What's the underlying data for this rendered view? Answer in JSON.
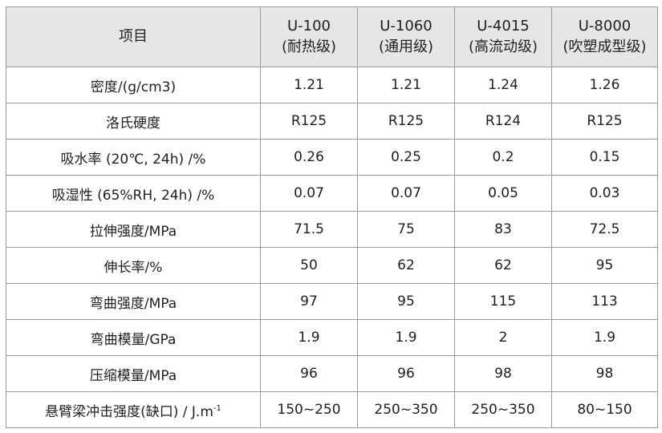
{
  "table": {
    "header": {
      "item_label": "项目",
      "models": [
        {
          "code": "U-100",
          "grade": "(耐热级)"
        },
        {
          "code": "U-1060",
          "grade": "(通用级)"
        },
        {
          "code": "U-4015",
          "grade": "(高流动级)"
        },
        {
          "code": "U-8000",
          "grade": "(吹塑成型级)"
        }
      ]
    },
    "rows": [
      {
        "label": "密度/(g/cm3)",
        "values": [
          "1.21",
          "1.21",
          "1.24",
          "1.26"
        ]
      },
      {
        "label": "洛氏硬度",
        "values": [
          "R125",
          "R125",
          "R124",
          "R125"
        ]
      },
      {
        "label": "吸水率 (20℃, 24h) /%",
        "values": [
          "0.26",
          "0.25",
          "0.2",
          "0.15"
        ]
      },
      {
        "label": "吸湿性 (65%RH, 24h) /%",
        "values": [
          "0.07",
          "0.07",
          "0.05",
          "0.03"
        ]
      },
      {
        "label": "拉伸强度/MPa",
        "values": [
          "71.5",
          "75",
          "83",
          "72.5"
        ]
      },
      {
        "label": "伸长率/%",
        "values": [
          "50",
          "62",
          "62",
          "95"
        ]
      },
      {
        "label": "弯曲强度/MPa",
        "values": [
          "97",
          "95",
          "115",
          "113"
        ]
      },
      {
        "label": "弯曲模量/GPa",
        "values": [
          "1.9",
          "1.9",
          "2",
          "1.9"
        ]
      },
      {
        "label": "压缩模量/MPa",
        "values": [
          "96",
          "96",
          "98",
          "98"
        ]
      },
      {
        "label": "悬臂梁冲击强度(缺口) / J.m",
        "label_sup": "-1",
        "values": [
          "150~250",
          "250~350",
          "250~350",
          "80~150"
        ]
      }
    ]
  }
}
